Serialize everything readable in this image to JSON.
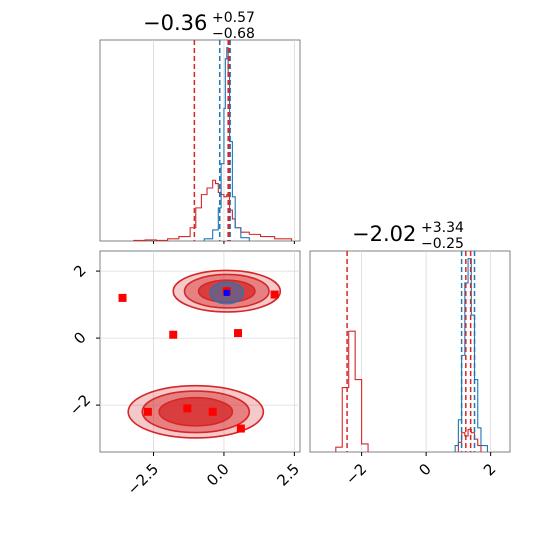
{
  "chart_data": [
    {
      "type": "histogram",
      "panel": "top-left",
      "title": {
        "main": "−0.36",
        "sup": "+0.57",
        "sub": "−0.68"
      },
      "xlim": [
        -4.4,
        2.7
      ],
      "series": [
        {
          "name": "",
          "color": "#d62728",
          "bins": [
            [
              -3.2,
              -2.8,
              0.5
            ],
            [
              -2.8,
              -2.4,
              1
            ],
            [
              -2.4,
              -2.0,
              0.5
            ],
            [
              -2.0,
              -1.6,
              2
            ],
            [
              -1.6,
              -1.2,
              4
            ],
            [
              -1.2,
              -1.0,
              12
            ],
            [
              -1.0,
              -0.8,
              30
            ],
            [
              -0.8,
              -0.6,
              42
            ],
            [
              -0.6,
              -0.4,
              48
            ],
            [
              -0.4,
              -0.3,
              55
            ],
            [
              -0.3,
              -0.2,
              52
            ],
            [
              -0.2,
              -0.1,
              44
            ],
            [
              -0.1,
              0.0,
              42
            ],
            [
              0.0,
              0.1,
              40
            ],
            [
              0.1,
              0.2,
              42
            ],
            [
              0.2,
              0.3,
              28
            ],
            [
              0.3,
              0.4,
              20
            ],
            [
              0.4,
              0.6,
              12
            ],
            [
              0.6,
              0.9,
              8
            ],
            [
              0.9,
              1.3,
              6
            ],
            [
              1.3,
              1.8,
              4
            ],
            [
              1.8,
              2.4,
              2
            ]
          ]
        },
        {
          "name": "",
          "color": "#1f77b4",
          "bins": [
            [
              -0.7,
              -0.4,
              2
            ],
            [
              -0.4,
              -0.2,
              10
            ],
            [
              -0.2,
              -0.1,
              30
            ],
            [
              -0.1,
              0.0,
              70
            ],
            [
              0.0,
              0.05,
              120
            ],
            [
              0.05,
              0.1,
              165
            ],
            [
              0.1,
              0.15,
              175
            ],
            [
              0.15,
              0.2,
              150
            ],
            [
              0.2,
              0.3,
              90
            ],
            [
              0.3,
              0.4,
              40
            ],
            [
              0.4,
              0.6,
              12
            ],
            [
              0.6,
              0.9,
              3
            ]
          ]
        }
      ],
      "vlines": [
        {
          "x": -1.05,
          "color": "#d62728"
        },
        {
          "x": 0.15,
          "color": "#d62728"
        },
        {
          "x": -0.15,
          "color": "#1f77b4"
        },
        {
          "x": 0.22,
          "color": "#1f77b4"
        },
        {
          "x": 0.18,
          "color": "#d62728"
        }
      ]
    },
    {
      "type": "contour",
      "panel": "bottom-left",
      "xlim": [
        -4.4,
        2.7
      ],
      "ylim": [
        -3.4,
        2.6
      ],
      "xticks": [
        "−2.5",
        "0.0",
        "2.5"
      ],
      "yticks": [
        "−2",
        "0",
        "2"
      ],
      "contours": [
        {
          "cx": 0.1,
          "cy": 1.4,
          "levels": [
            [
              1.0,
              0.33
            ],
            [
              1.5,
              0.5
            ],
            [
              1.9,
              0.62
            ]
          ],
          "color": "#d62728"
        },
        {
          "cx": -1.0,
          "cy": -2.2,
          "levels": [
            [
              1.3,
              0.42
            ],
            [
              1.9,
              0.62
            ],
            [
              2.4,
              0.78
            ]
          ],
          "color": "#d62728"
        }
      ],
      "blue_blob": {
        "cx": 0.1,
        "cy": 1.35,
        "rx": 0.6,
        "ry": 0.33
      },
      "markers_red": [
        [
          -3.6,
          1.2
        ],
        [
          -1.8,
          0.1
        ],
        [
          0.5,
          0.15
        ],
        [
          1.8,
          1.3
        ],
        [
          -2.7,
          -2.2
        ],
        [
          -1.3,
          -2.1
        ],
        [
          -0.4,
          -2.2
        ],
        [
          0.6,
          -2.7
        ],
        [
          0.1,
          1.4
        ]
      ],
      "markers_blue": [
        [
          0.1,
          1.35
        ]
      ]
    },
    {
      "type": "histogram",
      "panel": "bottom-right",
      "title": {
        "main": "−2.02",
        "sup": "+3.34",
        "sub": "−0.25"
      },
      "xlim": [
        -3.6,
        2.6
      ],
      "xticks": [
        "−2",
        "0",
        "2"
      ],
      "series": [
        {
          "name": "",
          "color": "#d62728",
          "bins": [
            [
              -2.8,
              -2.6,
              3
            ],
            [
              -2.6,
              -2.4,
              40
            ],
            [
              -2.4,
              -2.2,
              75
            ],
            [
              -2.2,
              -2.0,
              45
            ],
            [
              -2.0,
              -1.8,
              5
            ],
            [
              1.0,
              1.1,
              6
            ],
            [
              1.1,
              1.2,
              12
            ],
            [
              1.2,
              1.3,
              10
            ],
            [
              1.3,
              1.4,
              14
            ],
            [
              1.4,
              1.5,
              12
            ],
            [
              1.5,
              1.6,
              8
            ],
            [
              1.6,
              1.7,
              4
            ]
          ]
        },
        {
          "name": "",
          "color": "#1f77b4",
          "bins": [
            [
              0.9,
              1.0,
              4
            ],
            [
              1.0,
              1.1,
              20
            ],
            [
              1.1,
              1.2,
              60
            ],
            [
              1.2,
              1.3,
              105
            ],
            [
              1.3,
              1.4,
              120
            ],
            [
              1.4,
              1.5,
              85
            ],
            [
              1.5,
              1.6,
              45
            ],
            [
              1.6,
              1.7,
              15
            ],
            [
              1.7,
              1.9,
              4
            ]
          ]
        }
      ],
      "vlines": [
        {
          "x": -2.45,
          "color": "#d62728"
        },
        {
          "x": 1.23,
          "color": "#d62728"
        },
        {
          "x": 1.1,
          "color": "#1f77b4"
        },
        {
          "x": 1.5,
          "color": "#1f77b4"
        },
        {
          "x": 1.38,
          "color": "#d62728"
        }
      ]
    }
  ]
}
